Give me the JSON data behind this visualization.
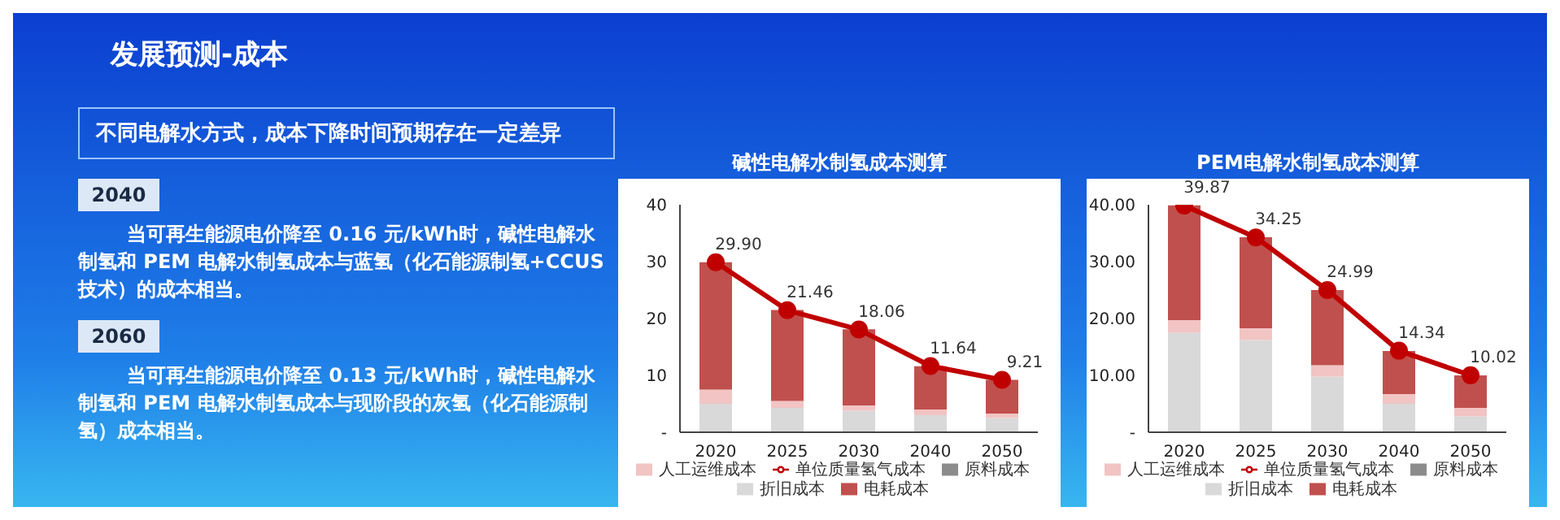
{
  "chart_data": [
    {
      "type": "other",
      "title": "发展预测-成本",
      "annotations": [
        "不同电解水方式，成本下降时间预期存在一定差异",
        "2040",
        "当可再生能源电价降至 0.16 元/kWh时，碱性电解水制氢和 PEM 电解水制氢成本与蓝氢（化石能源制氢+CCUS技术）的成本相当。",
        "2060",
        "当可再生能源电价降至 0.13 元/kWh时，碱性电解水制氢和 PEM 电解水制氢成本与现阶段的灰氢（化石能源制氢）成本相当。"
      ]
    },
    {
      "type": "bar",
      "title": "碱性电解水制氢成本测算",
      "categories": [
        "2020",
        "2025",
        "2030",
        "2040",
        "2050"
      ],
      "stacked": true,
      "legend": "bottom",
      "marker": "circle",
      "ylim": [
        0,
        40
      ],
      "yticks": [
        {
          "value": 0,
          "label": "-"
        },
        10,
        20,
        30,
        40
      ],
      "series": [
        {
          "name": "折旧成本",
          "color": "#d9d9d9",
          "values": [
            5.0,
            4.3,
            3.8,
            3.0,
            2.5
          ]
        },
        {
          "name": "原料成本",
          "color": "#8c8c8c",
          "values": [
            null,
            null,
            null,
            null,
            null
          ]
        },
        {
          "name": "人工运维成本",
          "color": "#f2c4c4",
          "values": [
            2.5,
            1.2,
            0.9,
            1.0,
            0.8
          ]
        },
        {
          "name": "电耗成本",
          "color": "#c0504d",
          "values": [
            22.4,
            16.0,
            13.4,
            7.6,
            5.9
          ]
        },
        {
          "name": "单位质量氢气成本",
          "type": "line",
          "color": "#c00000",
          "values": [
            29.9,
            21.46,
            18.06,
            11.64,
            9.21
          ],
          "value_labels": [
            "29.90",
            "21.46",
            "18.06",
            "11.64",
            "9.21"
          ]
        }
      ]
    },
    {
      "type": "bar",
      "title": "PEM电解水制氢成本测算",
      "categories": [
        "2020",
        "2025",
        "2030",
        "2040",
        "2050"
      ],
      "stacked": true,
      "legend": "bottom",
      "marker": "circle",
      "ylim": [
        0,
        40
      ],
      "yticks": [
        {
          "value": 0,
          "label": "-"
        },
        {
          "value": 10,
          "label": "10.00"
        },
        {
          "value": 20,
          "label": "20.00"
        },
        {
          "value": 30,
          "label": "30.00"
        },
        {
          "value": 40,
          "label": "40.00"
        }
      ],
      "series": [
        {
          "name": "折旧成本",
          "color": "#d9d9d9",
          "values": [
            17.5,
            16.2,
            9.8,
            5.0,
            2.8
          ]
        },
        {
          "name": "原料成本",
          "color": "#8c8c8c",
          "values": [
            null,
            null,
            null,
            null,
            null
          ]
        },
        {
          "name": "人工运维成本",
          "color": "#f2c4c4",
          "values": [
            2.2,
            2.1,
            2.0,
            1.7,
            1.5
          ]
        },
        {
          "name": "电耗成本",
          "color": "#c0504d",
          "values": [
            20.2,
            16.0,
            13.2,
            7.6,
            5.7
          ]
        },
        {
          "name": "单位质量氢气成本",
          "type": "line",
          "color": "#c00000",
          "values": [
            39.87,
            34.25,
            24.99,
            14.34,
            10.02
          ],
          "value_labels": [
            "39.87",
            "34.25",
            "24.99",
            "14.34",
            "10.02"
          ]
        }
      ]
    }
  ]
}
